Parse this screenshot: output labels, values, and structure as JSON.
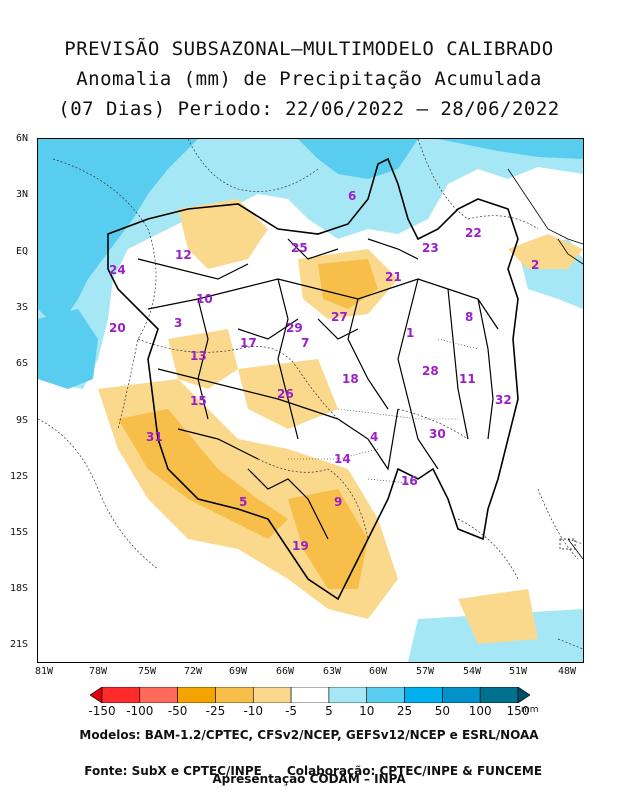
{
  "title": {
    "line1": "PREVISÃO SUBSAZONAL–MULTIMODELO CALIBRADO",
    "line2": "Anomalia (mm) de Precipitação Acumulada",
    "line3": "(07 Dias) Periodo: 22/06/2022 – 28/06/2022"
  },
  "y_ticks": [
    "6N",
    "3N",
    "EQ",
    "3S",
    "6S",
    "9S",
    "12S",
    "15S",
    "18S",
    "21S"
  ],
  "x_ticks": [
    "81W",
    "78W",
    "75W",
    "72W",
    "69W",
    "66W",
    "63W",
    "60W",
    "57W",
    "54W",
    "51W",
    "48W"
  ],
  "regions": [
    "1",
    "2",
    "3",
    "4",
    "5",
    "6",
    "7",
    "8",
    "9",
    "10",
    "11",
    "12",
    "13",
    "14",
    "15",
    "16",
    "17",
    "18",
    "19",
    "20",
    "21",
    "22",
    "23",
    "24",
    "25",
    "26",
    "27",
    "28",
    "29",
    "30",
    "31",
    "32"
  ],
  "legend": {
    "values": [
      "-150",
      "-100",
      "-50",
      "-25",
      "-10",
      "-5",
      "5",
      "10",
      "25",
      "50",
      "100",
      "150"
    ],
    "unit": "mm",
    "colors": [
      "#e1000f",
      "#ff2a2a",
      "#ff6a5a",
      "#f5a300",
      "#f7bf4a",
      "#fad88c",
      "#ffffff",
      "#a6e7f5",
      "#59cdf0",
      "#00b0ee",
      "#0092c9",
      "#00708f",
      "#004f66"
    ]
  },
  "footer": {
    "line1": "Modelos: BAM-1.2/CPTEC, CFSv2/NCEP, GEFSv12/NCEP e ESRL/NOAA",
    "line2a": "Fonte: SubX e CPTEC/INPE",
    "line2b": "Colaboração: CPTEC/INPE & FUNCEME",
    "line3": "Apresentação CODAM – INPA"
  }
}
